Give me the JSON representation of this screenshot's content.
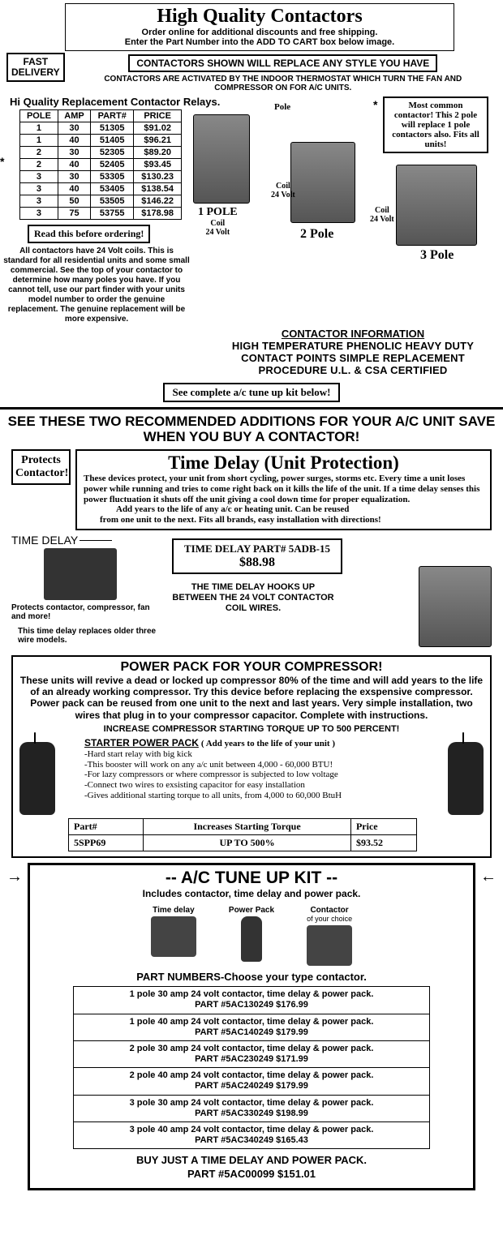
{
  "header": {
    "title": "High Quality Contactors",
    "sub1": "Order online for additional discounts and free shipping.",
    "sub2": "Enter the Part Number into the ADD TO CART box below image."
  },
  "fast": "FAST DELIVERY",
  "replaceBox": "CONTACTORS SHOWN WILL REPLACE ANY STYLE YOU HAVE",
  "activated": "CONTACTORS ARE ACTIVATED BY THE INDOOR THERMOSTAT WHICH TURN THE FAN AND COMPRESSOR ON FOR A/C UNITS.",
  "hqline": "Hi Quality Replacement Contactor Relays.",
  "table": {
    "cols": [
      "POLE",
      "AMP",
      "PART#",
      "PRICE"
    ],
    "rows": [
      [
        "1",
        "30",
        "51305",
        "$91.02"
      ],
      [
        "1",
        "40",
        "51405",
        "$96.21"
      ],
      [
        "2",
        "30",
        "52305",
        "$89.20"
      ],
      [
        "2",
        "40",
        "52405",
        "$93.45"
      ],
      [
        "3",
        "30",
        "53305",
        "$130.23"
      ],
      [
        "3",
        "40",
        "53405",
        "$138.54"
      ],
      [
        "3",
        "50",
        "53505",
        "$146.22"
      ],
      [
        "3",
        "75",
        "53755",
        "$178.98"
      ]
    ]
  },
  "readBefore": "Read this before ordering!",
  "leftText": "All contactors have 24 Volt coils. This is standard for all residential units and some small commercial. See the top of your contactor to determine how many poles you have. If you cannot tell, use our part finder with your units model number to order the genuine replacement. The genuine replacement will be more expensive.",
  "starBox": "Most common contactor! This 2 pole will replace 1 pole contactors also. Fits all units!",
  "poleLabels": {
    "pole": "Pole",
    "one": "1 POLE",
    "coil24": "Coil\n24 Volt",
    "two": "2 Pole",
    "three": "3 Pole"
  },
  "cinfo": {
    "u": "CONTACTOR INFORMATION",
    "t": "HIGH TEMPERATURE PHENOLIC HEAVY DUTY CONTACT POINTS SIMPLE REPLACEMENT PROCEDURE U.L. & CSA CERTIFIED"
  },
  "seeComplete": "See complete a/c tune up kit below!",
  "sec2h": "SEE THESE TWO RECOMMENDED ADDITIONS FOR YOUR A/C UNIT SAVE WHEN YOU BUY A CONTACTOR!",
  "protects": "Protects Contactor!",
  "tdTitle": "Time Delay    (Unit Protection)",
  "tdBody": "These devices protect, your unit from short cycling, power surges, storms etc. Every time a unit loses power while running and tries to come right back on it kills the life of the unit. If a time delay senses this power fluctuation it shuts off the unit giving a cool down time for proper equalization.",
  "tdBody2": "Add years to the life of any a/c or heating unit. Can be reused",
  "tdBody3": "from one unit to the next. Fits all brands, easy installation with directions!",
  "tdLabel": "TIME DELAY",
  "tdPart": "TIME DELAY PART# 5ADB-15",
  "tdPrice": "$88.98",
  "tdNote1": "Protects contactor, compressor, fan and more!",
  "tdNote2": "This time delay replaces older three wire models.",
  "tdHook": "THE TIME DELAY HOOKS UP BETWEEN THE 24 VOLT CONTACTOR COIL WIRES.",
  "pp": {
    "title": "POWER PACK FOR YOUR COMPRESSOR!",
    "body": "These units will revive a dead or locked up compressor 80% of the time and will add years to the life of an already working compressor. Try this device before replacing the exspensive compressor. Power pack can be reused from one unit to the next and last years. Very simple installation, two wires that plug in to your compressor capacitor. Complete with instructions.",
    "inc": "INCREASE COMPRESSOR STARTING TORQUE UP TO 500 PERCENT!",
    "sppLine": "STARTER POWER PACK",
    "sppNote": "( Add years to the life of your unit )",
    "bullets": [
      "-Hard start relay with big kick",
      "-This booster will work on any a/c unit between 4,000 - 60,000 BTU!",
      "-For lazy compressors or where compressor is subjected to low voltage",
      "-Connect two wires to exsisting capacitor for easy installation",
      "-Gives additional starting torque to all units, from 4,000 to 60,000 BtuH"
    ],
    "tcols": [
      "Part#",
      "Increases Starting Torque",
      "Price"
    ],
    "trow": [
      "5SPP69",
      "UP TO 500%",
      "$93.52"
    ]
  },
  "kit": {
    "title": "--  A/C TUNE UP KIT --",
    "sub": "Includes contactor, time delay and power pack.",
    "icons": [
      "Time delay",
      "Power Pack",
      "Contactor"
    ],
    "iconNote": "of your choice",
    "pn": "PART NUMBERS-Choose your type contactor.",
    "rows": [
      [
        "1 pole 30 amp 24 volt contactor, time delay & power pack.",
        "PART #5AC130249 $176.99"
      ],
      [
        "1 pole 40 amp 24 volt contactor, time delay & power pack.",
        "PART #5AC140249 $179.99"
      ],
      [
        "2 pole 30 amp 24 volt contactor, time delay & power pack.",
        "PART #5AC230249 $171.99"
      ],
      [
        "2 pole 40 amp 24 volt contactor, time delay & power pack.",
        "PART #5AC240249 $179.99"
      ],
      [
        "3 pole 30 amp 24 volt contactor, time delay & power pack.",
        "PART #5AC330249 $198.99"
      ],
      [
        "3 pole 40 amp 24 volt contactor, time delay & power pack.",
        "PART #5AC340249 $165.43"
      ]
    ],
    "bottom1": "BUY JUST A TIME DELAY AND POWER PACK.",
    "bottom2": "PART #5AC00099  $151.01"
  }
}
